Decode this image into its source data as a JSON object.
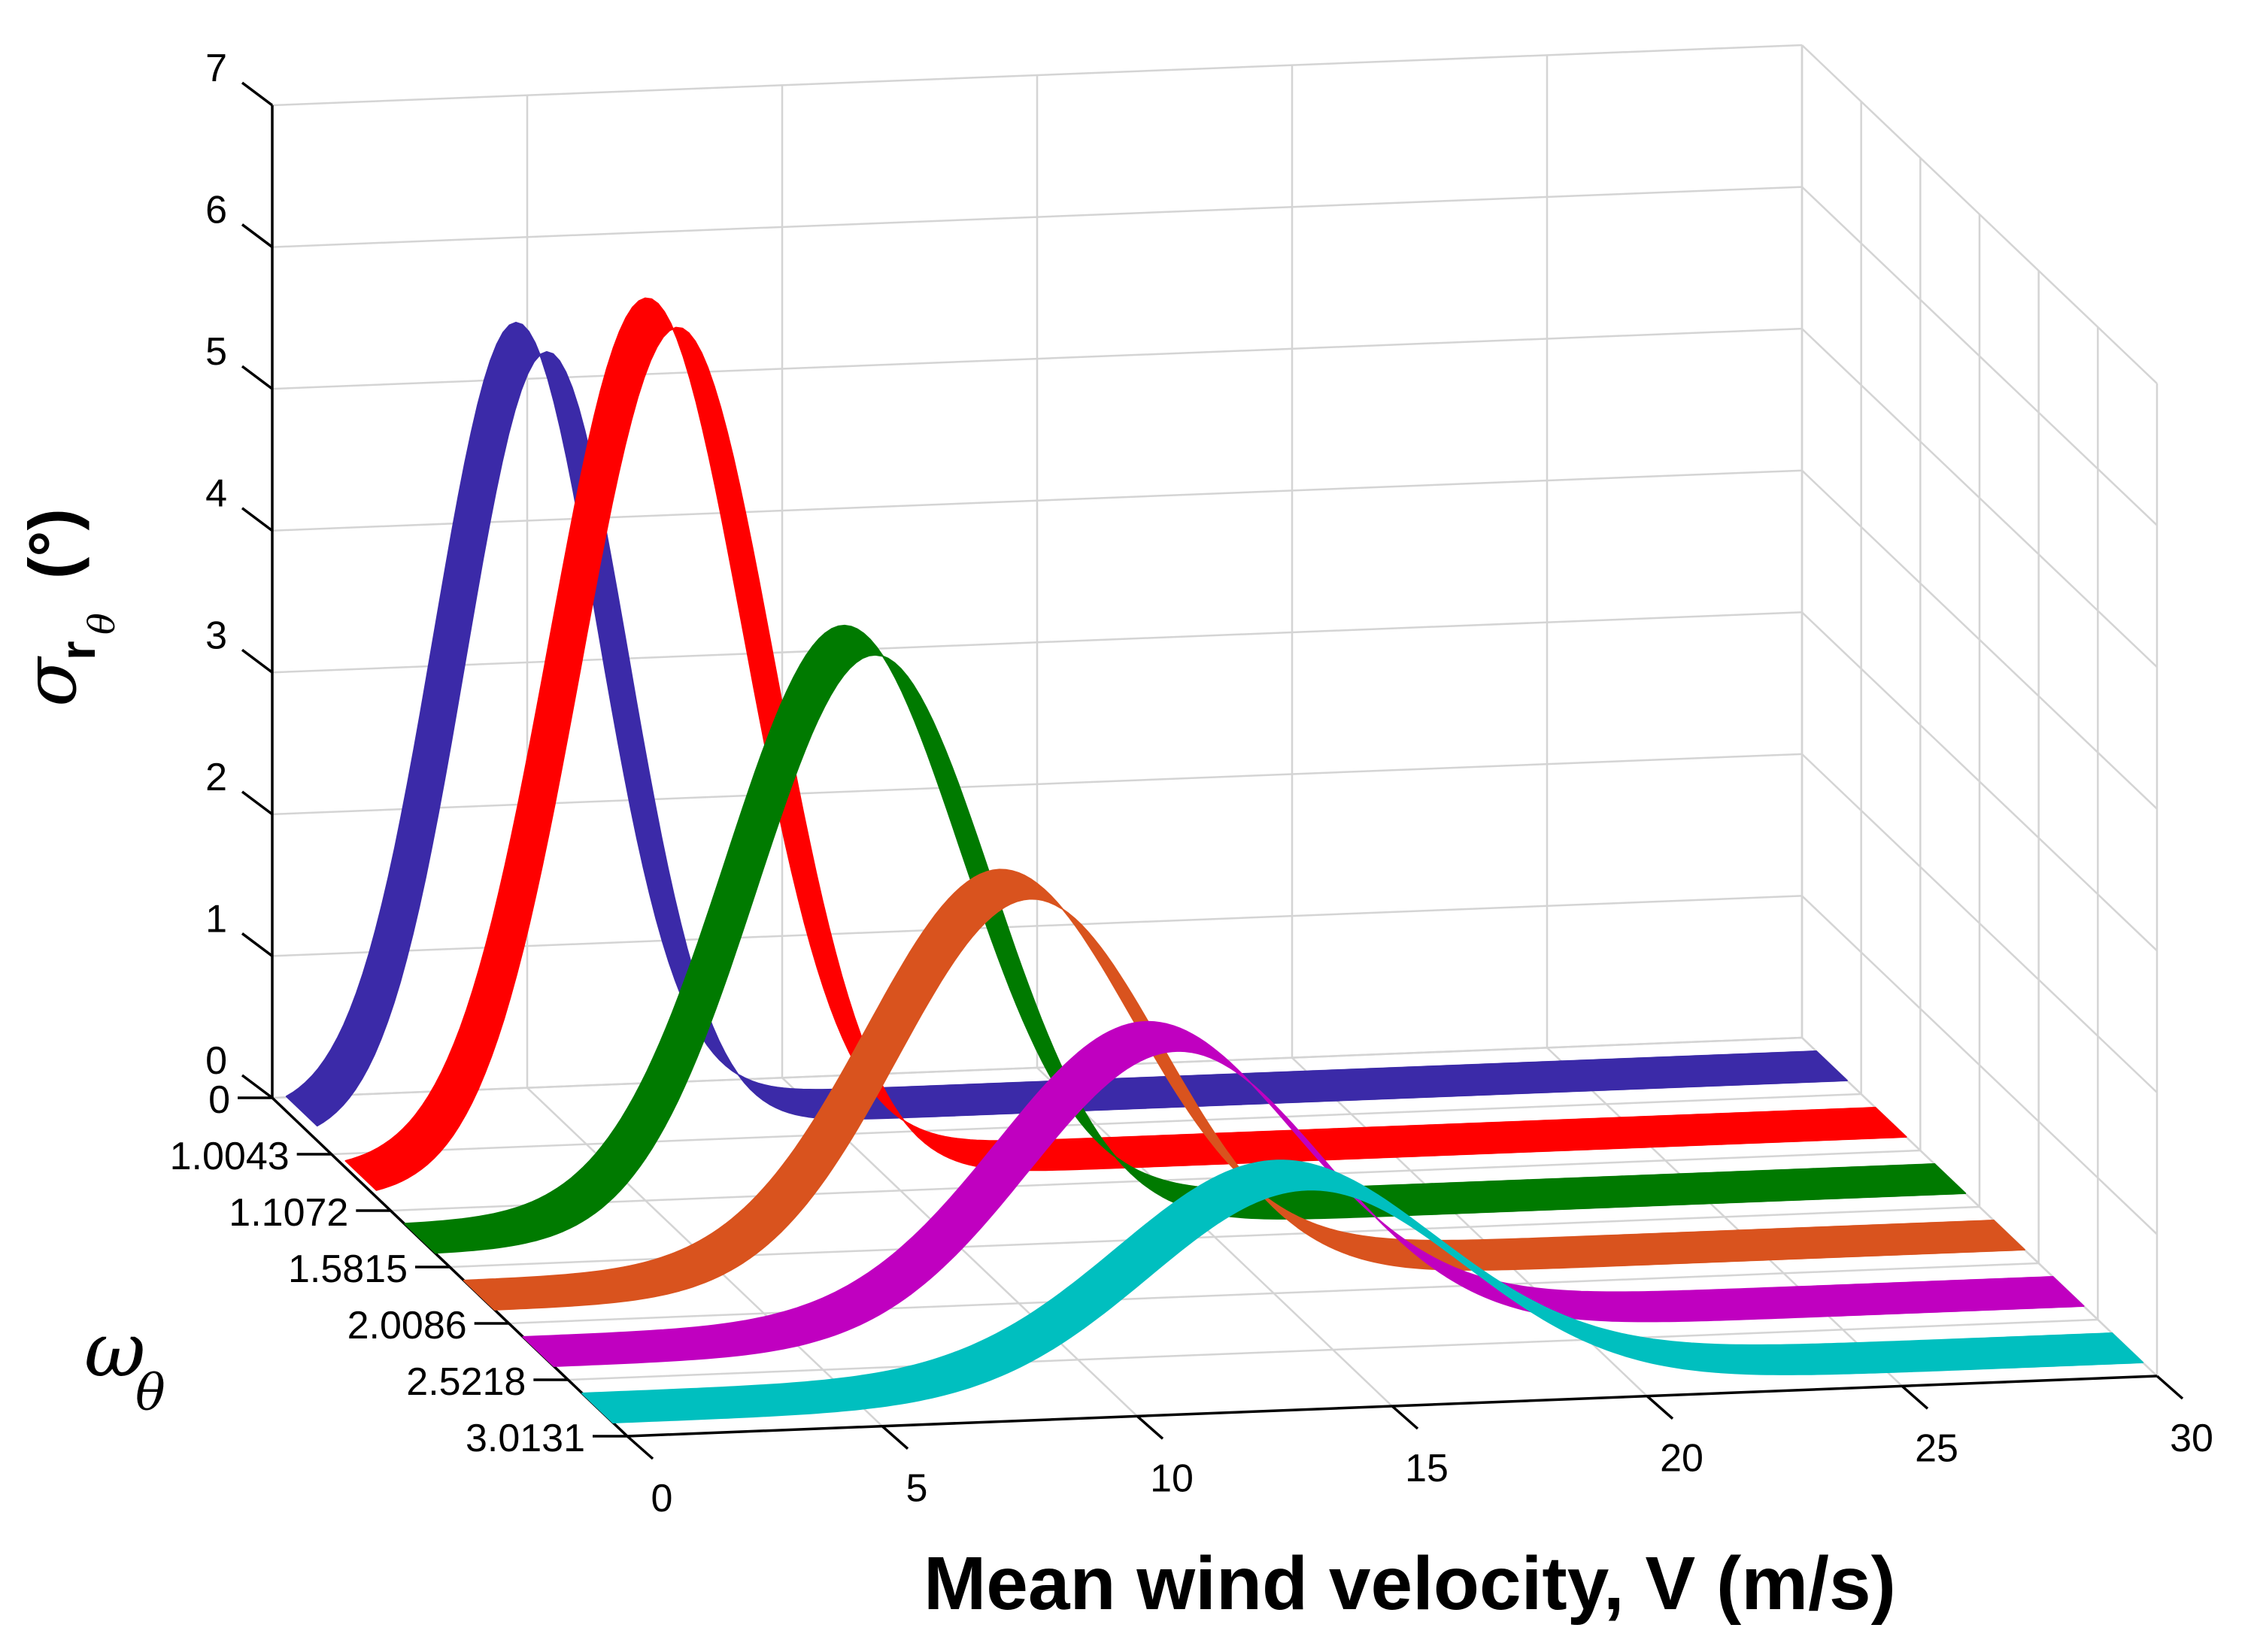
{
  "chart_data": {
    "type": "ribbon3d",
    "x": {
      "label": "Mean wind velocity, V (m/s)",
      "range": [
        0,
        30
      ],
      "ticks": [
        0,
        5,
        10,
        15,
        20,
        25,
        30
      ]
    },
    "y": {
      "label_symbol": "ω",
      "label_subscript": "θ",
      "tick_labels": [
        "0",
        "1.0043",
        "1.1072",
        "1.5815",
        "2.0086",
        "2.5218",
        "3.0131"
      ]
    },
    "z": {
      "label_symbol": "σ",
      "label_subscript": "r",
      "label_subsubscript": "θ",
      "label_units": "(°)",
      "range": [
        0,
        7
      ],
      "ticks": [
        0,
        1,
        2,
        3,
        4,
        5,
        6,
        7
      ]
    },
    "grid": true,
    "series": [
      {
        "name": "1.0043",
        "color": "#3b2aa8",
        "peak_velocity": 4.5,
        "peak_value": 5.5,
        "width": 1.6
      },
      {
        "name": "1.1072",
        "color": "#ff0000",
        "peak_velocity": 5.9,
        "peak_value": 6.05,
        "width": 1.9
      },
      {
        "name": "1.5815",
        "color": "#007a00",
        "peak_velocity": 8.6,
        "peak_value": 4.1,
        "width": 2.3
      },
      {
        "name": "2.0086",
        "color": "#d9531e",
        "peak_velocity": 10.5,
        "peak_value": 2.75,
        "width": 2.6
      },
      {
        "name": "2.5218",
        "color": "#c000c0",
        "peak_velocity": 12.2,
        "peak_value": 2.05,
        "width": 2.9
      },
      {
        "name": "3.0131",
        "color": "#00bfbf",
        "peak_velocity": 13.6,
        "peak_value": 1.45,
        "width": 3.1
      }
    ]
  }
}
